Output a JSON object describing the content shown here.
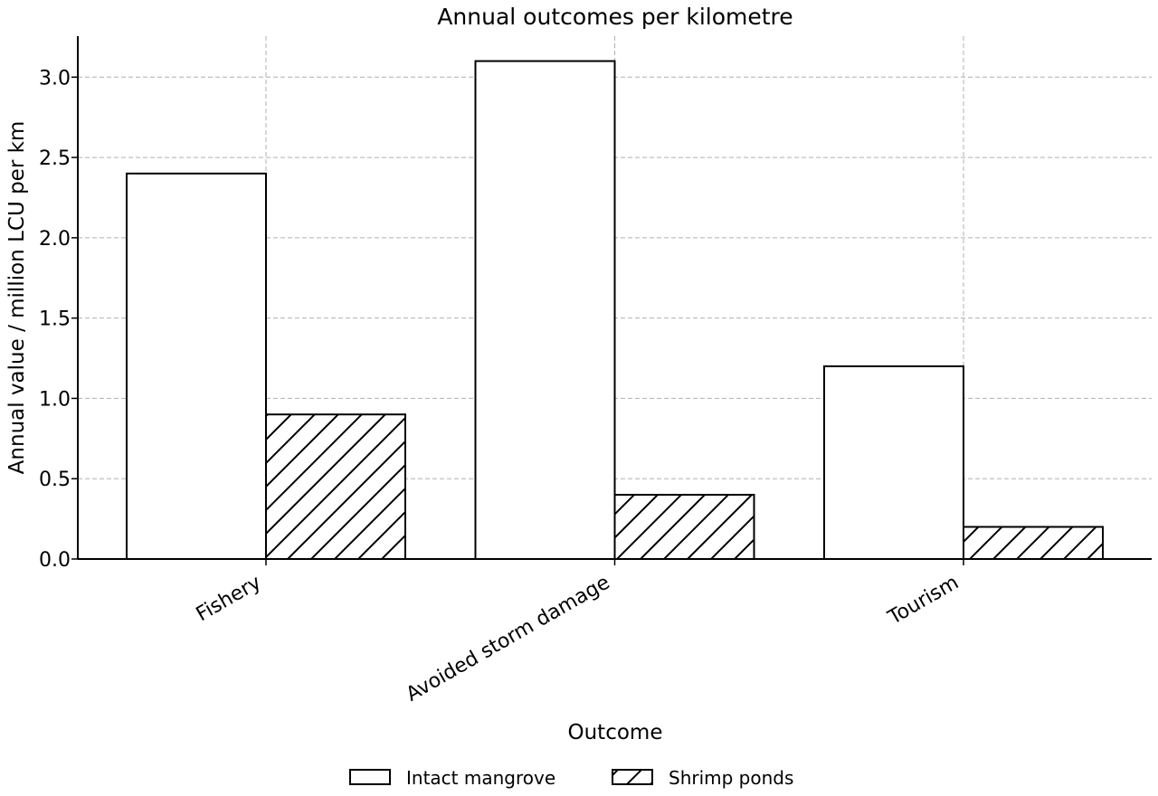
{
  "chart_data": {
    "type": "bar",
    "title": "Annual outcomes per kilometre",
    "xlabel": "Outcome",
    "ylabel": "Annual value / million LCU per km",
    "categories": [
      "Fishery",
      "Avoided storm damage",
      "Tourism"
    ],
    "series": [
      {
        "name": "Intact mangrove",
        "values": [
          2.4,
          3.1,
          1.2
        ],
        "fill": "#ffffff",
        "hatch": "none"
      },
      {
        "name": "Shrimp ponds",
        "values": [
          0.9,
          0.4,
          0.2
        ],
        "fill": "#ffffff",
        "hatch": "diagonal"
      }
    ],
    "ylim": [
      0,
      3.255
    ],
    "yticks": [
      "0.0",
      "0.5",
      "1.0",
      "1.5",
      "2.0",
      "2.5",
      "3.0"
    ],
    "grid": true,
    "legend_position": "bottom-center",
    "colors": {
      "edge": "#000000",
      "grid": "#b0b0b0",
      "background": "#ffffff"
    }
  }
}
